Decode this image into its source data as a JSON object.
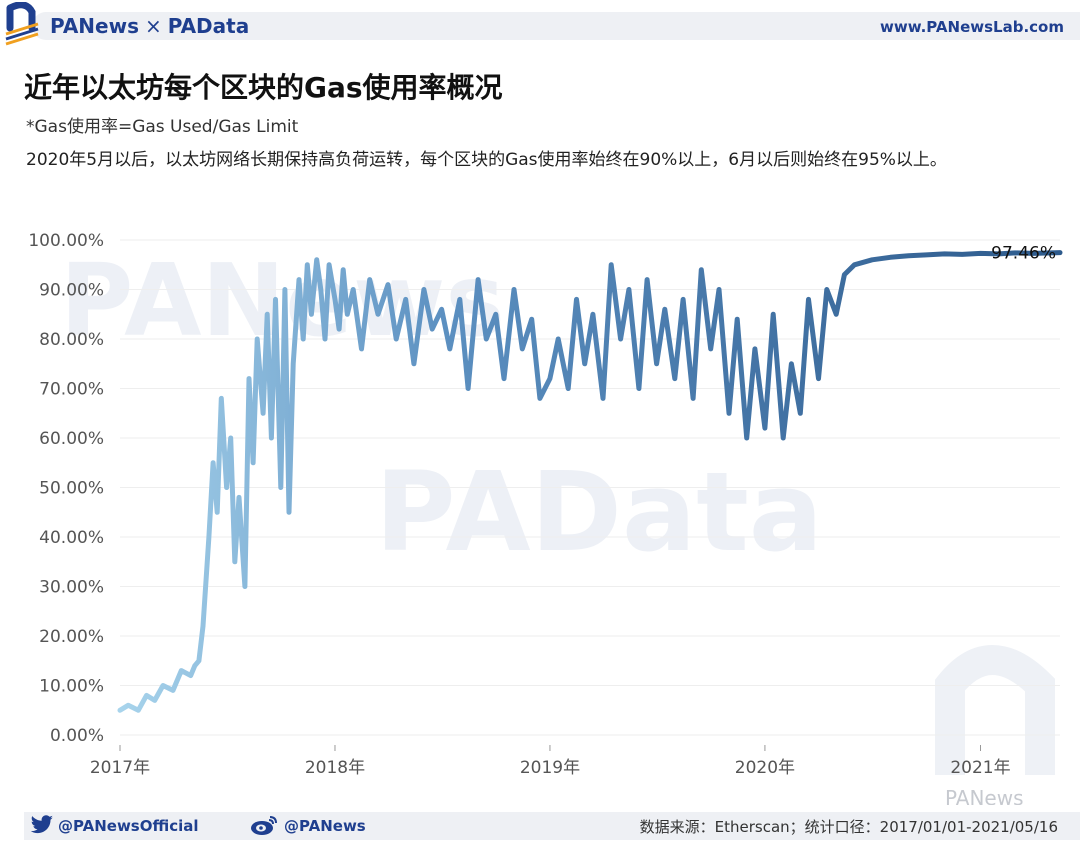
{
  "header": {
    "brand_left": "PANews",
    "brand_sep": "×",
    "brand_right": "PAData",
    "site": "www.PANewsLab.com"
  },
  "title": "近年以太坊每个区块的Gas使用率概况",
  "subtitle": "*Gas使用率=Gas Used/Gas Limit",
  "description": "2020年5月以后，以太坊网络长期保持高负荷运转，每个区块的Gas使用率始终在90%以上，6月以后则始终在95%以上。",
  "watermarks": {
    "main": "PANews",
    "data": "PAData",
    "wechat": "PANews"
  },
  "footer": {
    "twitter": "@PANewsOfficial",
    "weibo": "@PANews",
    "source": "数据来源：Etherscan；统计口径：2017/01/01-2021/05/16"
  },
  "colors": {
    "line_start": "#a8d4ec",
    "line_end": "#2d5a8c",
    "accent": "#1f3f8f"
  },
  "chart_data": {
    "type": "line",
    "title": "近年以太坊每个区块的Gas使用率概况",
    "xlabel": "",
    "ylabel": "",
    "x_range": [
      "2017-01-01",
      "2021-05-16"
    ],
    "ylim": [
      0,
      100
    ],
    "x_ticks": [
      "2017年",
      "2018年",
      "2019年",
      "2020年",
      "2021年"
    ],
    "y_ticks": [
      "0.00%",
      "10.00%",
      "20.00%",
      "30.00%",
      "40.00%",
      "50.00%",
      "60.00%",
      "70.00%",
      "80.00%",
      "90.00%",
      "100.00%"
    ],
    "end_label": "97.46%",
    "grid": true,
    "series": [
      {
        "x": [
          "2017-01-01",
          "2017-01-15",
          "2017-02-01",
          "2017-02-15",
          "2017-03-01",
          "2017-03-15",
          "2017-04-01",
          "2017-04-15",
          "2017-05-01",
          "2017-05-08",
          "2017-05-15",
          "2017-05-22",
          "2017-06-01",
          "2017-06-08",
          "2017-06-15",
          "2017-06-22",
          "2017-07-01",
          "2017-07-08",
          "2017-07-15",
          "2017-07-22",
          "2017-08-01",
          "2017-08-08",
          "2017-08-15",
          "2017-08-22",
          "2017-09-01",
          "2017-09-08",
          "2017-09-15",
          "2017-09-22",
          "2017-10-01",
          "2017-10-08",
          "2017-10-15",
          "2017-10-22",
          "2017-11-01",
          "2017-11-08",
          "2017-11-15",
          "2017-11-22",
          "2017-12-01",
          "2017-12-08",
          "2017-12-15",
          "2017-12-22",
          "2018-01-01",
          "2018-01-08",
          "2018-01-15",
          "2018-01-22",
          "2018-02-01",
          "2018-02-15",
          "2018-03-01",
          "2018-03-15",
          "2018-04-01",
          "2018-04-15",
          "2018-05-01",
          "2018-05-15",
          "2018-06-01",
          "2018-06-15",
          "2018-07-01",
          "2018-07-15",
          "2018-08-01",
          "2018-08-15",
          "2018-09-01",
          "2018-09-15",
          "2018-10-01",
          "2018-10-15",
          "2018-11-01",
          "2018-11-15",
          "2018-12-01",
          "2018-12-15",
          "2019-01-01",
          "2019-01-15",
          "2019-02-01",
          "2019-02-15",
          "2019-03-01",
          "2019-03-15",
          "2019-04-01",
          "2019-04-15",
          "2019-05-01",
          "2019-05-15",
          "2019-06-01",
          "2019-06-15",
          "2019-07-01",
          "2019-07-15",
          "2019-08-01",
          "2019-08-15",
          "2019-09-01",
          "2019-09-15",
          "2019-10-01",
          "2019-10-15",
          "2019-11-01",
          "2019-11-15",
          "2019-12-01",
          "2019-12-15",
          "2020-01-01",
          "2020-01-15",
          "2020-02-01",
          "2020-02-15",
          "2020-03-01",
          "2020-03-15",
          "2020-04-01",
          "2020-04-15",
          "2020-05-01",
          "2020-05-15",
          "2020-06-01",
          "2020-07-01",
          "2020-08-01",
          "2020-09-01",
          "2020-10-01",
          "2020-11-01",
          "2020-12-01",
          "2021-01-01",
          "2021-02-01",
          "2021-03-01",
          "2021-04-01",
          "2021-05-16"
        ],
        "y": [
          5,
          6,
          5,
          8,
          7,
          10,
          9,
          13,
          12,
          14,
          15,
          22,
          40,
          55,
          45,
          68,
          50,
          60,
          35,
          48,
          30,
          72,
          55,
          80,
          65,
          85,
          60,
          88,
          50,
          90,
          45,
          75,
          92,
          80,
          95,
          85,
          96,
          90,
          80,
          95,
          88,
          82,
          94,
          85,
          90,
          78,
          92,
          85,
          91,
          80,
          88,
          75,
          90,
          82,
          86,
          78,
          88,
          70,
          92,
          80,
          85,
          72,
          90,
          78,
          84,
          68,
          72,
          80,
          70,
          88,
          75,
          85,
          68,
          95,
          80,
          90,
          70,
          92,
          75,
          86,
          72,
          88,
          68,
          94,
          78,
          90,
          65,
          84,
          60,
          78,
          62,
          85,
          60,
          75,
          65,
          88,
          72,
          90,
          85,
          93,
          95,
          96,
          96.5,
          96.8,
          97,
          97.2,
          97.1,
          97.3,
          97.2,
          97.4,
          97.3,
          97.46
        ]
      }
    ]
  }
}
